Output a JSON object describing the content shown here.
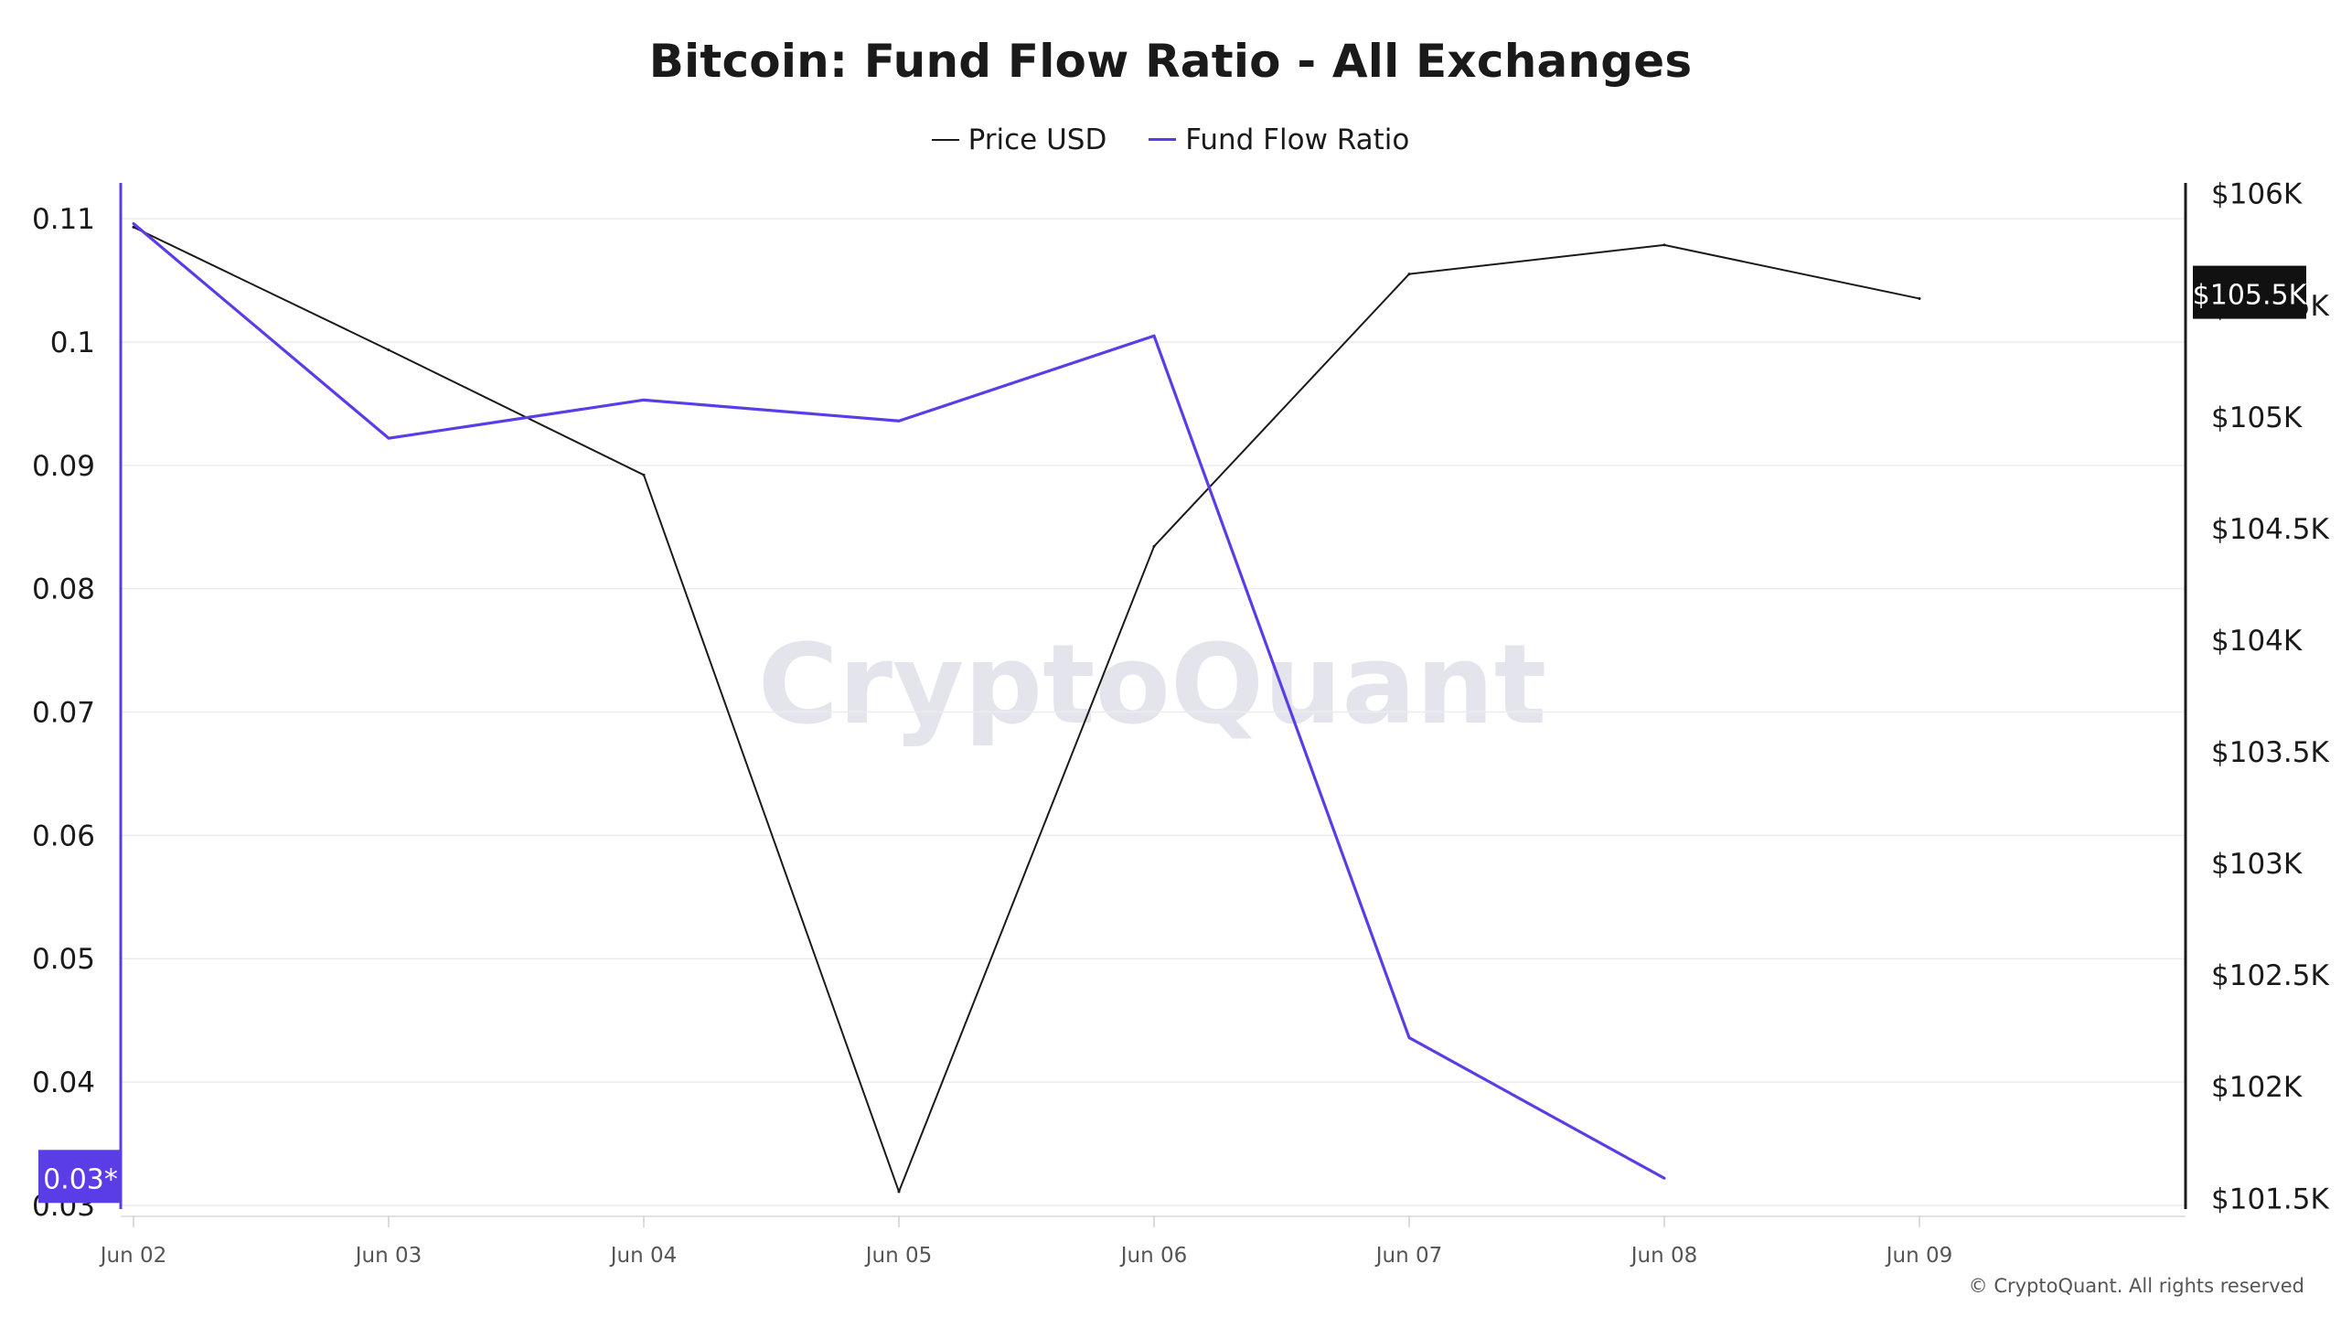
{
  "chart_data": {
    "type": "line",
    "title": "Bitcoin: Fund Flow Ratio - All Exchanges",
    "watermark": "CryptoQuant",
    "footer": "© CryptoQuant. All rights reserved",
    "x": [
      "Jun 02",
      "Jun 03",
      "Jun 04",
      "Jun 05",
      "Jun 06",
      "Jun 07",
      "Jun 08",
      "Jun 09"
    ],
    "y_left": {
      "label": "Fund Flow Ratio",
      "range": [
        0.0297,
        0.1129
      ],
      "ticks": [
        {
          "value": 0.03,
          "label": "0.03"
        },
        {
          "value": 0.04,
          "label": "0.04"
        },
        {
          "value": 0.05,
          "label": "0.05"
        },
        {
          "value": 0.06,
          "label": "0.06"
        },
        {
          "value": 0.07,
          "label": "0.07"
        },
        {
          "value": 0.08,
          "label": "0.08"
        },
        {
          "value": 0.09,
          "label": "0.09"
        },
        {
          "value": 0.1,
          "label": "0.1"
        },
        {
          "value": 0.11,
          "label": "0.11"
        }
      ],
      "badge": {
        "value": 0.0322,
        "label": "0.03*"
      }
    },
    "y_right": {
      "label": "Price USD",
      "range": [
        101452,
        106048
      ],
      "ticks": [
        {
          "value": 101500,
          "label": "$101.5K"
        },
        {
          "value": 102000,
          "label": "$102K"
        },
        {
          "value": 102500,
          "label": "$102.5K"
        },
        {
          "value": 103000,
          "label": "$103K"
        },
        {
          "value": 103500,
          "label": "$103.5K"
        },
        {
          "value": 104000,
          "label": "$104K"
        },
        {
          "value": 104500,
          "label": "$104.5K"
        },
        {
          "value": 105000,
          "label": "$105K"
        },
        {
          "value": 105500,
          "label": "$105.5K"
        },
        {
          "value": 106000,
          "label": "$106K"
        }
      ],
      "badge": {
        "value": 105550,
        "label": "$105.5K"
      }
    },
    "series": [
      {
        "name": "Price USD",
        "axis": "right",
        "color": "#1a1a1a",
        "values": [
          105850,
          105300,
          104740,
          101530,
          104420,
          105640,
          105770,
          105530
        ]
      },
      {
        "name": "Fund Flow Ratio",
        "axis": "left",
        "color": "#5b3de8",
        "values": [
          0.1096,
          0.0922,
          0.0953,
          0.0936,
          0.1005,
          0.0436,
          0.0322,
          null
        ]
      }
    ]
  }
}
